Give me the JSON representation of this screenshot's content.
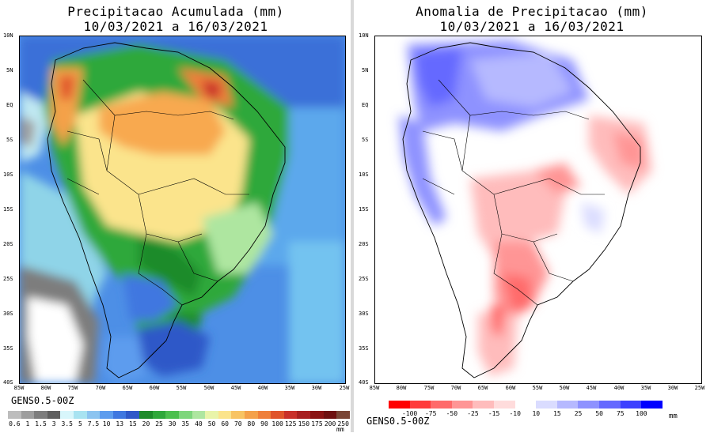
{
  "left": {
    "title_line1": "Precipitacao Acumulada (mm)",
    "title_line2": "10/03/2021 a 16/03/2021",
    "model": "GENS0.5-00Z",
    "unit": "mm",
    "colorbar": {
      "labels": [
        "0.6",
        "1",
        "1.5",
        "3",
        "3.5",
        "5",
        "7.5",
        "10",
        "13",
        "15",
        "20",
        "25",
        "30",
        "35",
        "40",
        "50",
        "60",
        "70",
        "80",
        "90",
        "100",
        "125",
        "150",
        "175",
        "200",
        "250"
      ],
      "colors": [
        "#bdbdbd",
        "#9e9e9e",
        "#7d7d7d",
        "#5f5f5f",
        "#d8f6fb",
        "#a8e3f1",
        "#8cc4f0",
        "#5d9cee",
        "#3f77e0",
        "#2f58c8",
        "#1e8b2a",
        "#2fa83a",
        "#4cc04e",
        "#7ed67c",
        "#aee6a0",
        "#e9f4a9",
        "#fbe48c",
        "#f8c463",
        "#f4a14a",
        "#ef7f3a",
        "#e0552b",
        "#c9302a",
        "#a81f20",
        "#8b1414",
        "#6e1010",
        "#7a4636"
      ]
    }
  },
  "right": {
    "title_line1": "Anomalia de Precipitacao (mm)",
    "title_line2": "10/03/2021 a 16/03/2021",
    "model": "GENS0.5-00Z",
    "unit": "mm",
    "colorbar": {
      "labels": [
        "-100",
        "-75",
        "-50",
        "-25",
        "-15",
        "-10",
        "10",
        "15",
        "25",
        "50",
        "75",
        "100"
      ],
      "colors": [
        "#ff0000",
        "#ff3b3b",
        "#ff6a6a",
        "#ff9595",
        "#ffbcbc",
        "#ffdcdc",
        "#ffffff",
        "#dadcff",
        "#b6b9ff",
        "#8e92ff",
        "#6569ff",
        "#3c40ff",
        "#0000ff"
      ]
    }
  },
  "lat_ticks": [
    "10N",
    "5N",
    "EQ",
    "5S",
    "10S",
    "15S",
    "20S",
    "25S",
    "30S",
    "35S",
    "40S"
  ],
  "lon_ticks": [
    "85W",
    "80W",
    "75W",
    "70W",
    "65W",
    "60W",
    "55W",
    "50W",
    "45W",
    "40W",
    "35W",
    "30W",
    "25W"
  ],
  "icons": {
    "map_left": "precipitation-map-south-america",
    "map_right": "precipitation-anomaly-map-south-america"
  }
}
